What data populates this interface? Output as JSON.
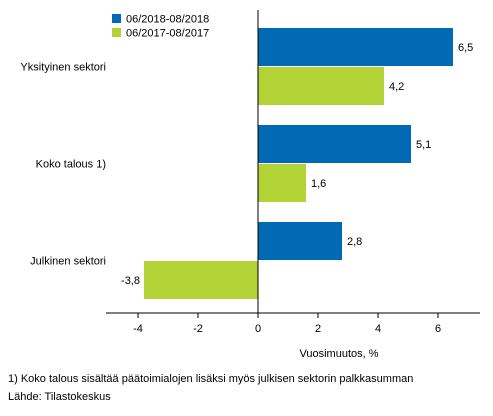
{
  "chart_data": {
    "type": "bar",
    "orientation": "horizontal",
    "categories": [
      "Yksityinen sektori",
      "Koko talous 1)",
      "Julkinen sektori"
    ],
    "series": [
      {
        "name": "06/2018-08/2018",
        "color": "#006bb4",
        "values": [
          6.5,
          5.1,
          2.8
        ],
        "labels": [
          "6,5",
          "5,1",
          "2,8"
        ]
      },
      {
        "name": "06/2017-08/2017",
        "color": "#b2d235",
        "values": [
          4.2,
          1.6,
          -3.8
        ],
        "labels": [
          "4,2",
          "1,6",
          "-3,8"
        ]
      }
    ],
    "xlabel": "Vuosimuutos, %",
    "xlim": [
      -5,
      7.2
    ],
    "xticks": [
      -4,
      -2,
      0,
      2,
      4,
      6
    ],
    "xtick_labels": [
      "-4",
      "-2",
      "0",
      "2",
      "4",
      "6"
    ],
    "legend_position": "top-left",
    "grid": false
  },
  "footnotes": {
    "note": "1) Koko talous sisältää päätoimialojen lisäksi myös julkisen sektorin palkkasumman",
    "source": "Lähde: Tilastokeskus"
  }
}
